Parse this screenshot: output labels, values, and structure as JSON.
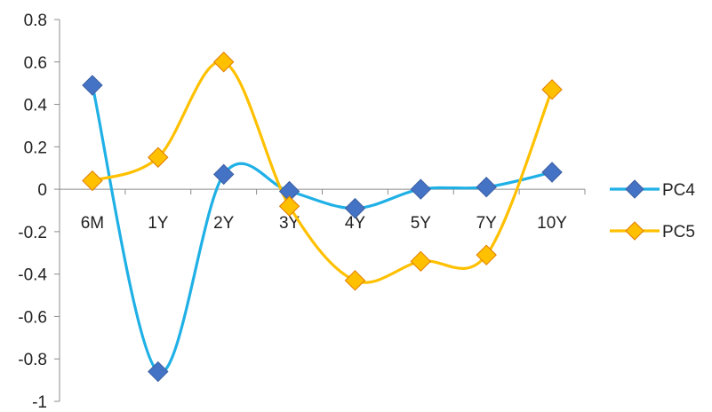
{
  "chart_data": {
    "type": "line",
    "title": "",
    "xlabel": "",
    "ylabel": "",
    "categories": [
      "6M",
      "1Y",
      "2Y",
      "3Y",
      "4Y",
      "5Y",
      "7Y",
      "10Y"
    ],
    "ylim": [
      -1,
      0.8
    ],
    "yticks": [
      "0.8",
      "0.6",
      "0.4",
      "0.2",
      "0",
      "-0.2",
      "-0.4",
      "-0.6",
      "-0.8",
      "-1"
    ],
    "grid": false,
    "smooth": true,
    "marker": "diamond",
    "legend_position": "right",
    "series": [
      {
        "name": "PC4",
        "values": [
          0.49,
          -0.86,
          0.07,
          -0.01,
          -0.09,
          0.0,
          0.01,
          0.08
        ],
        "line_color": "#1fb0e6",
        "marker_color": "#4472c4"
      },
      {
        "name": "PC5",
        "values": [
          0.04,
          0.15,
          0.6,
          -0.08,
          -0.43,
          -0.34,
          -0.31,
          0.47
        ],
        "line_color": "#ffc000",
        "marker_color": "#ffc000"
      }
    ]
  }
}
